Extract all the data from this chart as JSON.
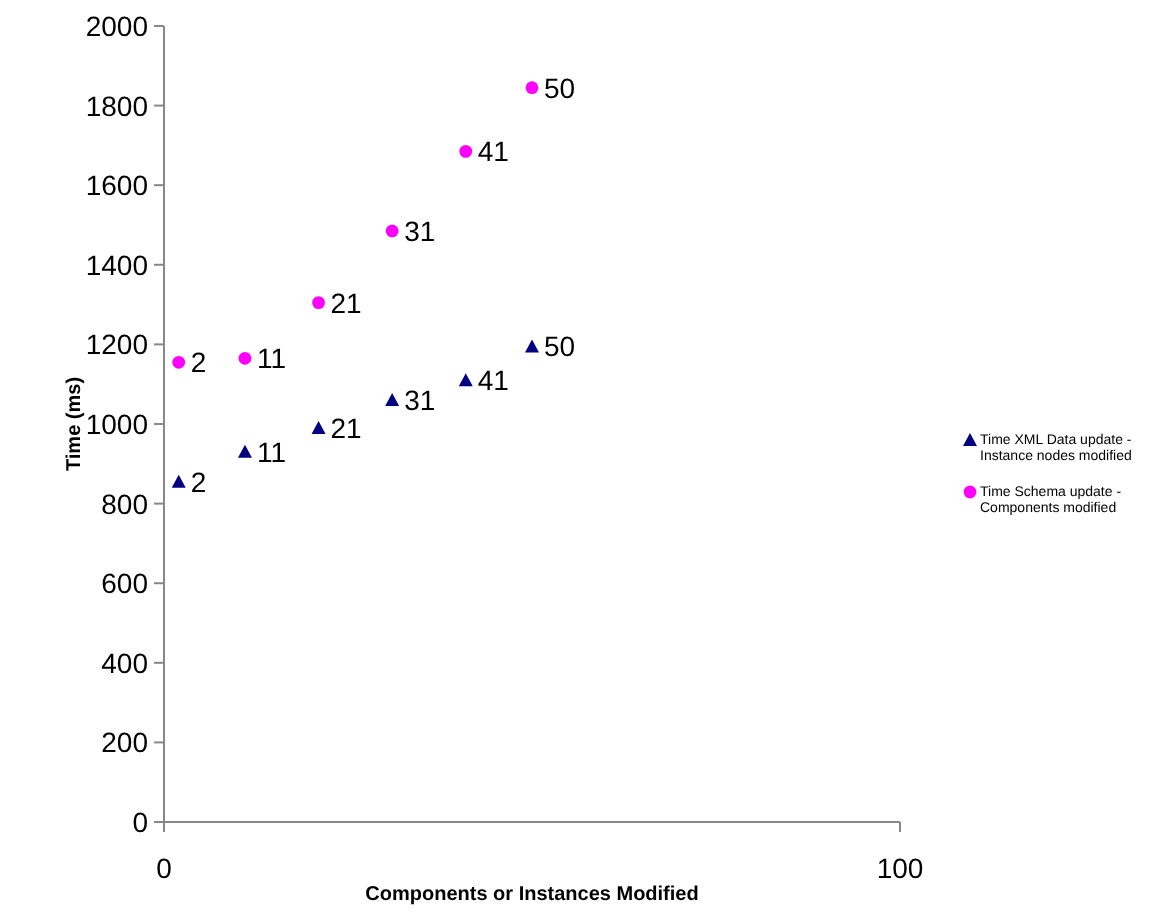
{
  "chart_data": {
    "type": "scatter",
    "xlabel": "Components or Instances Modified",
    "ylabel": "Time (ms)",
    "x": [
      2,
      11,
      21,
      31,
      41,
      50
    ],
    "xlim": [
      0,
      100
    ],
    "xticks": [
      0,
      100
    ],
    "ylim": [
      0,
      2000
    ],
    "yticks": [
      0,
      200,
      400,
      600,
      800,
      1000,
      1200,
      1400,
      1600,
      1800,
      2000
    ],
    "legend": "right",
    "grid": false,
    "series": [
      {
        "name": "Time  XML Data update - Instance nodes  modified",
        "color": "#000080",
        "marker": "triangle",
        "values": [
          855,
          930,
          990,
          1060,
          1110,
          1195
        ]
      },
      {
        "name": "Time Schema update - Components modified",
        "color": "#ff00ff",
        "marker": "circle",
        "values": [
          1155,
          1165,
          1305,
          1485,
          1685,
          1845
        ]
      }
    ],
    "annotations": [
      {
        "text": "2",
        "x": 2,
        "y": 855
      },
      {
        "text": "11",
        "x": 11,
        "y": 930
      },
      {
        "text": "21",
        "x": 21,
        "y": 990
      },
      {
        "text": "31",
        "x": 31,
        "y": 1060
      },
      {
        "text": "41",
        "x": 41,
        "y": 1110
      },
      {
        "text": "50",
        "x": 50,
        "y": 1195
      },
      {
        "text": "2",
        "x": 2,
        "y": 1155
      },
      {
        "text": "11",
        "x": 11,
        "y": 1165
      },
      {
        "text": "21",
        "x": 21,
        "y": 1305
      },
      {
        "text": "31",
        "x": 31,
        "y": 1485
      },
      {
        "text": "41",
        "x": 41,
        "y": 1685
      },
      {
        "text": "50",
        "x": 50,
        "y": 1845
      }
    ]
  }
}
